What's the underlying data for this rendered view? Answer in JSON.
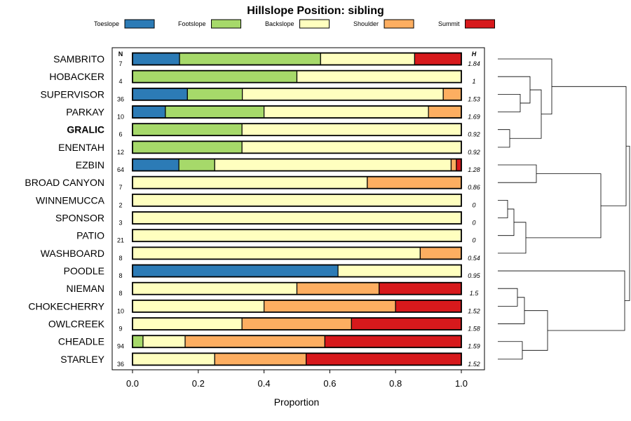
{
  "chart_data": {
    "type": "bar",
    "stacked": true,
    "orientation": "horizontal",
    "title": "Hillslope Position: sibling",
    "xlabel": "Proportion",
    "ylabel": "",
    "xlim": [
      0,
      1
    ],
    "xticks": [
      "0.0",
      "0.2",
      "0.4",
      "0.6",
      "0.8",
      "1.0"
    ],
    "n_header": "N",
    "h_header": "H",
    "highlighted": "GRALIC",
    "legend": [
      {
        "name": "Toeslope",
        "color": "#2c7bb6"
      },
      {
        "name": "Footslope",
        "color": "#a6d96a"
      },
      {
        "name": "Backslope",
        "color": "#ffffbf"
      },
      {
        "name": "Shoulder",
        "color": "#fdae61"
      },
      {
        "name": "Summit",
        "color": "#d7191c"
      }
    ],
    "rows": [
      {
        "label": "SAMBRITO",
        "n": "7",
        "h": "1.84",
        "values": [
          0.143,
          0.429,
          0.286,
          0,
          0.142
        ]
      },
      {
        "label": "HOBACKER",
        "n": "4",
        "h": "1",
        "values": [
          0,
          0.5,
          0.5,
          0,
          0
        ]
      },
      {
        "label": "SUPERVISOR",
        "n": "36",
        "h": "1.53",
        "values": [
          0.167,
          0.167,
          0.611,
          0.055,
          0
        ]
      },
      {
        "label": "PARKAY",
        "n": "10",
        "h": "1.69",
        "values": [
          0.1,
          0.3,
          0.5,
          0.1,
          0
        ]
      },
      {
        "label": "GRALIC",
        "n": "6",
        "h": "0.92",
        "values": [
          0,
          0.333,
          0.667,
          0,
          0
        ]
      },
      {
        "label": "ENENTAH",
        "n": "12",
        "h": "0.92",
        "values": [
          0,
          0.333,
          0.667,
          0,
          0
        ]
      },
      {
        "label": "EZBIN",
        "n": "64",
        "h": "1.28",
        "values": [
          0.141,
          0.109,
          0.719,
          0.016,
          0.015
        ]
      },
      {
        "label": "BROAD CANYON",
        "n": "7",
        "h": "0.86",
        "values": [
          0,
          0,
          0.714,
          0.286,
          0
        ]
      },
      {
        "label": "WINNEMUCCA",
        "n": "2",
        "h": "0",
        "values": [
          0,
          0,
          1,
          0,
          0
        ]
      },
      {
        "label": "SPONSOR",
        "n": "3",
        "h": "0",
        "values": [
          0,
          0,
          1,
          0,
          0
        ]
      },
      {
        "label": "PATIO",
        "n": "21",
        "h": "0",
        "values": [
          0,
          0,
          1,
          0,
          0
        ]
      },
      {
        "label": "WASHBOARD",
        "n": "8",
        "h": "0.54",
        "values": [
          0,
          0,
          0.875,
          0.125,
          0
        ]
      },
      {
        "label": "POODLE",
        "n": "8",
        "h": "0.95",
        "values": [
          0.625,
          0,
          0.375,
          0,
          0
        ]
      },
      {
        "label": "NIEMAN",
        "n": "8",
        "h": "1.5",
        "values": [
          0,
          0,
          0.5,
          0.25,
          0.25
        ]
      },
      {
        "label": "CHOKECHERRY",
        "n": "10",
        "h": "1.52",
        "values": [
          0,
          0,
          0.4,
          0.4,
          0.2
        ]
      },
      {
        "label": "OWLCREEK",
        "n": "9",
        "h": "1.58",
        "values": [
          0,
          0,
          0.333,
          0.333,
          0.334
        ]
      },
      {
        "label": "CHEADLE",
        "n": "94",
        "h": "1.59",
        "values": [
          0,
          0.032,
          0.128,
          0.425,
          0.415
        ]
      },
      {
        "label": "STARLEY",
        "n": "36",
        "h": "1.52",
        "values": [
          0,
          0,
          0.25,
          0.278,
          0.472
        ]
      }
    ]
  }
}
